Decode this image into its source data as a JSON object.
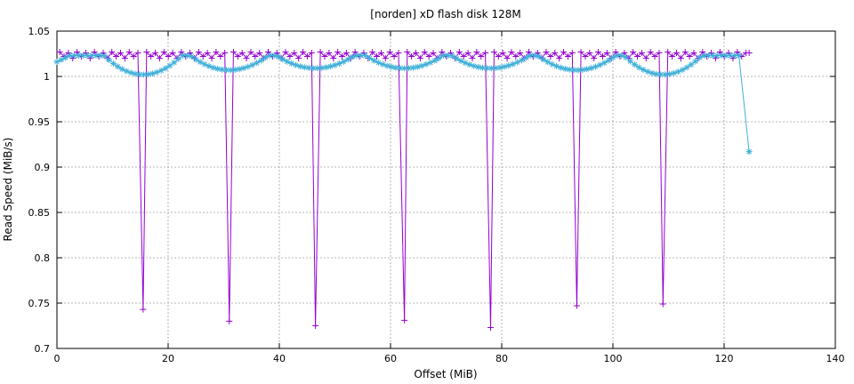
{
  "chart_data": {
    "type": "line",
    "title": "[norden] xD flash disk 128M",
    "xlabel": "Offset (MiB)",
    "ylabel": "Read Speed (MiB/s)",
    "xlim": [
      0,
      140
    ],
    "ylim": [
      0.7,
      1.05
    ],
    "x_ticks": [
      "0",
      "20",
      "40",
      "60",
      "80",
      "100",
      "120",
      "140"
    ],
    "y_ticks": [
      "0.7",
      "0.75",
      "0.8",
      "0.85",
      "0.9",
      "0.95",
      "1",
      "1.05"
    ],
    "grid": true,
    "legend": "none",
    "series": [
      {
        "marker": "plus",
        "color": "#9400d3",
        "x_start": 0.5,
        "x_step": 0.78125,
        "count": 160,
        "last_x": 124.5,
        "baseline_pattern": [
          1.027,
          1.022,
          1.026,
          1.02
        ],
        "dips": [
          {
            "x": 15.5,
            "y": 0.743
          },
          {
            "x": 31.0,
            "y": 0.73
          },
          {
            "x": 46.5,
            "y": 0.725
          },
          {
            "x": 62.5,
            "y": 0.731
          },
          {
            "x": 78.0,
            "y": 0.723
          },
          {
            "x": 93.5,
            "y": 0.747
          },
          {
            "x": 109.0,
            "y": 0.749
          }
        ],
        "last_y": 1.026
      },
      {
        "marker": "asterisk",
        "color": "#3fb0d8",
        "x_start": 0.0,
        "x_step": 0.78125,
        "count": 158,
        "wave_centers": [
          15.5,
          31.0,
          46.5,
          62.5,
          78.0,
          93.5,
          109.0
        ],
        "wave_min": [
          1.002,
          1.007,
          1.009,
          1.009,
          1.009,
          1.007,
          1.002
        ],
        "wave_max": 1.023,
        "wave_halfwidth": 7.0,
        "end_point": {
          "x": 124.5,
          "y": 0.917
        }
      }
    ]
  }
}
